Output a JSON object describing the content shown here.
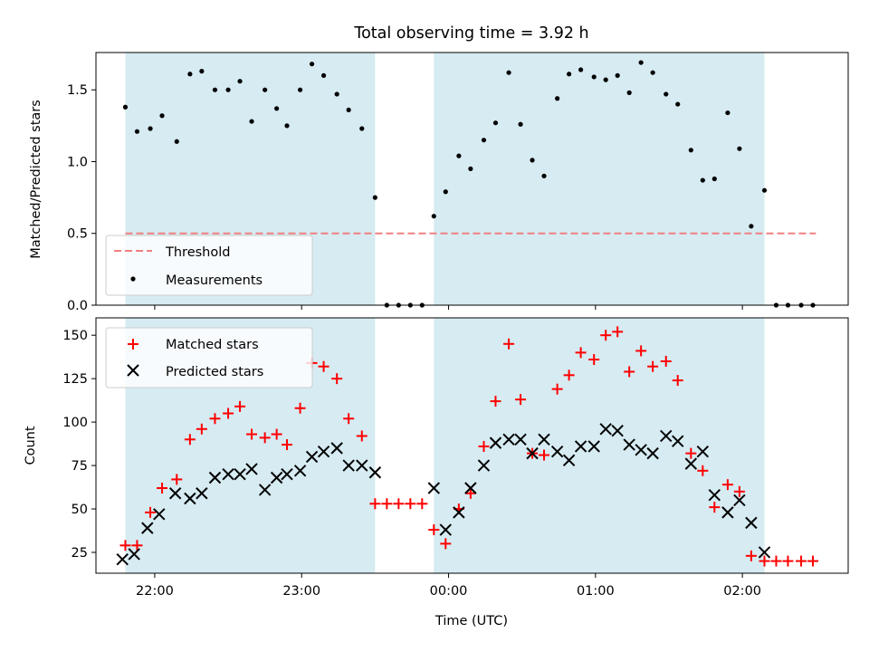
{
  "title": "Total observing time = 3.92 h",
  "colors": {
    "band": "#add8e6",
    "threshold": "#f08080",
    "measurement": "#000000",
    "matched": "#ff0000",
    "predicted": "#000000"
  },
  "chart_data": [
    {
      "type": "scatter",
      "ylabel": "Matched/Predicted stars",
      "ylim": [
        0,
        1.76
      ],
      "yticks": [
        0.0,
        0.5,
        1.0,
        1.5
      ],
      "ytick_labels": [
        "0.0",
        "0.5",
        "1.0",
        "1.5"
      ],
      "xlim_hours": [
        21.6,
        26.72
      ],
      "xticks": [
        22,
        23,
        24,
        25,
        26
      ],
      "shaded_intervals": [
        [
          21.8,
          23.5
        ],
        [
          23.9,
          26.15
        ]
      ],
      "threshold": {
        "name": "Threshold",
        "value": 0.5,
        "x_range": [
          21.8,
          26.5
        ]
      },
      "legend": {
        "placement": "lower-left",
        "entries": [
          "Threshold",
          "Measurements"
        ]
      },
      "series": [
        {
          "name": "Measurements",
          "marker": "dot",
          "x": [
            21.8,
            21.88,
            21.97,
            22.05,
            22.15,
            22.24,
            22.32,
            22.41,
            22.5,
            22.58,
            22.66,
            22.75,
            22.83,
            22.9,
            22.99,
            23.07,
            23.15,
            23.24,
            23.32,
            23.41,
            23.5,
            23.58,
            23.66,
            23.74,
            23.82,
            23.9,
            23.98,
            24.07,
            24.15,
            24.24,
            24.32,
            24.41,
            24.49,
            24.57,
            24.65,
            24.74,
            24.82,
            24.9,
            24.99,
            25.07,
            25.15,
            25.23,
            25.31,
            25.39,
            25.48,
            25.56,
            25.65,
            25.73,
            25.81,
            25.9,
            25.98,
            26.06,
            26.15,
            26.23,
            26.31,
            26.4,
            26.48
          ],
          "y": [
            1.38,
            1.21,
            1.23,
            1.32,
            1.14,
            1.61,
            1.63,
            1.5,
            1.5,
            1.56,
            1.28,
            1.5,
            1.37,
            1.25,
            1.5,
            1.68,
            1.6,
            1.47,
            1.36,
            1.23,
            0.75,
            0.0,
            0.0,
            0.0,
            0.0,
            0.62,
            0.79,
            1.04,
            0.95,
            1.15,
            1.27,
            1.62,
            1.26,
            1.01,
            0.9,
            1.44,
            1.61,
            1.64,
            1.59,
            1.57,
            1.6,
            1.48,
            1.69,
            1.62,
            1.47,
            1.4,
            1.08,
            0.87,
            0.88,
            1.34,
            1.09,
            0.55,
            0.8,
            0.0,
            0.0,
            0.0,
            0.0
          ]
        }
      ]
    },
    {
      "type": "scatter",
      "xlabel": "Time (UTC)",
      "ylabel": "Count",
      "ylim": [
        13,
        160
      ],
      "yticks": [
        25,
        50,
        75,
        100,
        125,
        150
      ],
      "ytick_labels": [
        "25",
        "50",
        "75",
        "100",
        "125",
        "150"
      ],
      "xlim_hours": [
        21.6,
        26.72
      ],
      "xticks": [
        22,
        23,
        24,
        25,
        26
      ],
      "xtick_labels": [
        "22:00",
        "23:00",
        "00:00",
        "01:00",
        "02:00"
      ],
      "shaded_intervals": [
        [
          21.8,
          23.5
        ],
        [
          23.9,
          26.15
        ]
      ],
      "legend": {
        "placement": "top-left",
        "entries": [
          "Matched stars",
          "Predicted stars"
        ]
      },
      "series": [
        {
          "name": "Matched stars",
          "marker": "plus",
          "x": [
            21.8,
            21.88,
            21.97,
            22.05,
            22.15,
            22.24,
            22.32,
            22.41,
            22.5,
            22.58,
            22.66,
            22.75,
            22.83,
            22.9,
            22.99,
            23.07,
            23.15,
            23.24,
            23.32,
            23.41,
            23.5,
            23.58,
            23.66,
            23.74,
            23.82,
            23.9,
            23.98,
            24.07,
            24.15,
            24.24,
            24.32,
            24.41,
            24.49,
            24.57,
            24.65,
            24.74,
            24.82,
            24.9,
            24.99,
            25.07,
            25.15,
            25.23,
            25.31,
            25.39,
            25.48,
            25.56,
            25.65,
            25.73,
            25.81,
            25.9,
            25.98,
            26.06,
            26.15,
            26.23,
            26.31,
            26.4,
            26.48
          ],
          "y": [
            29,
            29,
            48,
            62,
            67,
            90,
            96,
            102,
            105,
            109,
            93,
            91,
            93,
            87,
            108,
            134,
            132,
            125,
            102,
            92,
            53,
            53,
            53,
            53,
            53,
            38,
            30,
            50,
            59,
            86,
            112,
            145,
            113,
            82,
            81,
            119,
            127,
            140,
            136,
            150,
            152,
            129,
            141,
            132,
            135,
            124,
            82,
            72,
            51,
            64,
            60,
            23,
            20,
            20,
            20,
            20,
            20
          ]
        },
        {
          "name": "Predicted stars",
          "marker": "x",
          "x": [
            21.78,
            21.86,
            21.95,
            22.03,
            22.14,
            22.24,
            22.32,
            22.41,
            22.5,
            22.58,
            22.66,
            22.75,
            22.83,
            22.9,
            22.99,
            23.07,
            23.15,
            23.24,
            23.32,
            23.41,
            23.5,
            23.9,
            23.98,
            24.07,
            24.15,
            24.24,
            24.32,
            24.41,
            24.49,
            24.57,
            24.65,
            24.74,
            24.82,
            24.9,
            24.99,
            25.07,
            25.15,
            25.23,
            25.31,
            25.39,
            25.48,
            25.56,
            25.65,
            25.73,
            25.81,
            25.9,
            25.98,
            26.06,
            26.15
          ],
          "y": [
            21,
            24,
            39,
            47,
            59,
            56,
            59,
            68,
            70,
            70,
            73,
            61,
            68,
            70,
            72,
            80,
            83,
            85,
            75,
            75,
            71,
            62,
            38,
            48,
            62,
            75,
            88,
            90,
            90,
            82,
            90,
            83,
            78,
            86,
            86,
            96,
            95,
            87,
            84,
            82,
            92,
            89,
            76,
            83,
            58,
            48,
            55,
            42,
            25
          ]
        }
      ]
    }
  ]
}
